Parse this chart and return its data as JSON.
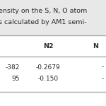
{
  "title_line1": "ensity on the S, N, O atom",
  "title_line2": "s calculated by AM1 semi-",
  "col_header": [
    "N2",
    "N"
  ],
  "row1_col0": "-382",
  "row1_col1": "-0.2679",
  "row1_col2": "-",
  "row2_col0": "95",
  "row2_col1": "-0.150",
  "row2_col2": "-",
  "bg_color": "#e8e8e8",
  "table_bg": "#ffffff",
  "text_color": "#2a2a2a",
  "line_color": "#aaaaaa",
  "title_fontsize": 6.8,
  "header_fontsize": 6.8,
  "cell_fontsize": 6.5
}
